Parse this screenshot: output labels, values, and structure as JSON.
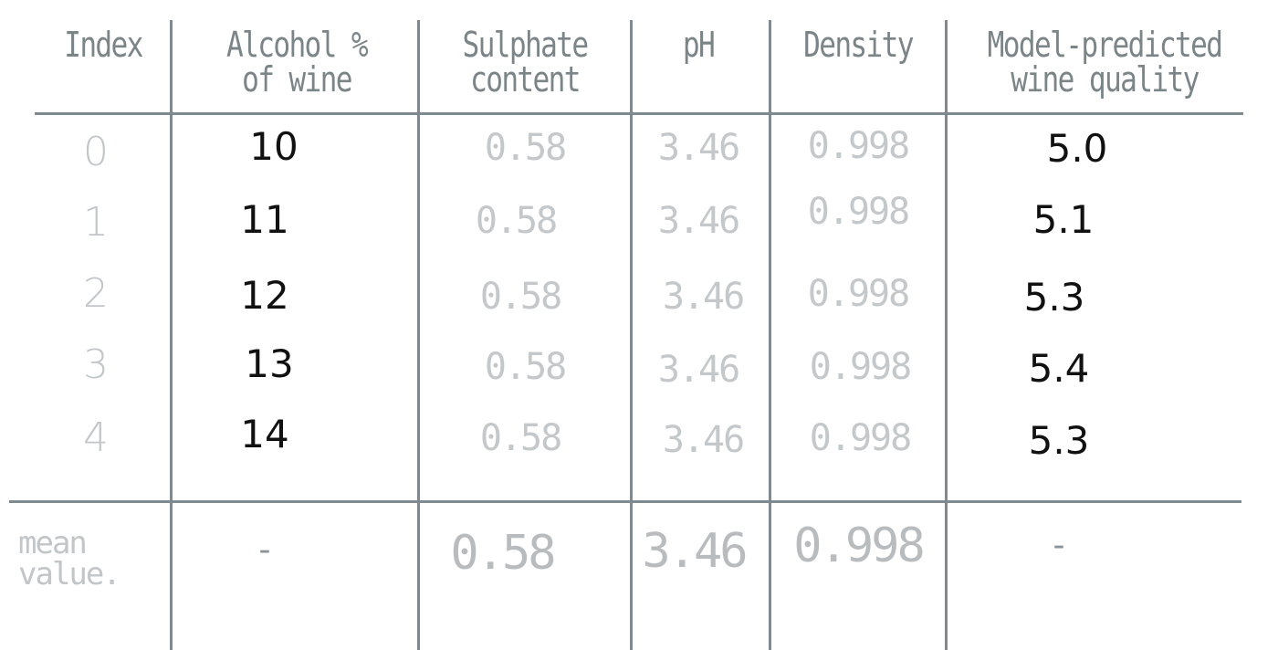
{
  "table": {
    "headers": [
      "Index",
      "Alcohol % of wine",
      "Sulphate content",
      "pH",
      "Density",
      "Model-predicted wine quality"
    ],
    "rows": [
      [
        "0",
        "10",
        "0.58",
        "3.46",
        "0.998",
        "5.0"
      ],
      [
        "1",
        "11",
        "0.58",
        "3.46",
        "0.998",
        "5.1"
      ],
      [
        "2",
        "12",
        "0.58",
        "3.46",
        "0.998",
        "5.3"
      ],
      [
        "3",
        "13",
        "0.58",
        "3.46",
        "0.998",
        "5.4"
      ],
      [
        "4",
        "14",
        "0.58",
        "3.46",
        "0.998",
        "5.3"
      ]
    ],
    "mean_row": {
      "label": "mean value.",
      "values": [
        "-",
        "0.58",
        "3.46",
        "0.998",
        "-"
      ]
    }
  },
  "colors": {
    "grid_line": "#7e8a8f",
    "header_text": "#7b8588",
    "varied_values": "#111111",
    "constant_values": "#c4c8ca"
  }
}
